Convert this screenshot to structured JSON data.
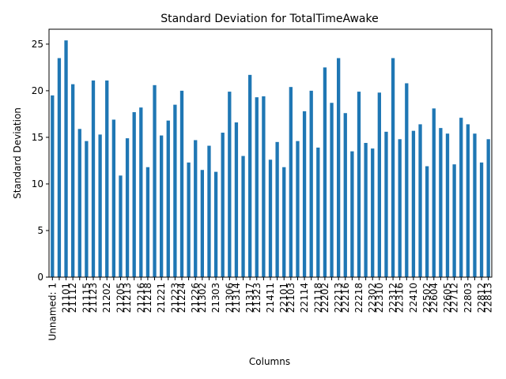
{
  "chart_data": {
    "type": "bar",
    "title": "Standard Deviation for TotalTimeAwake",
    "x_label": "Columns",
    "y_label": "Standard Deviation",
    "categories": [
      "Unnamed: 1",
      null,
      "21101",
      "21112",
      null,
      "21115",
      "21123",
      null,
      "21202",
      null,
      "21205",
      "21213",
      null,
      "21216",
      "21218",
      null,
      "21221",
      null,
      "21223",
      "21224",
      null,
      "21226",
      "21302",
      null,
      "21303",
      null,
      "21306",
      "21314",
      null,
      "21317",
      "21323",
      null,
      "21411",
      null,
      "22101",
      "22103",
      null,
      "22114",
      null,
      "22118",
      "22202",
      null,
      "22213",
      "22216",
      null,
      "22218",
      null,
      "22302",
      "22310",
      null,
      "22312",
      "22316",
      null,
      "22410",
      null,
      "22502",
      "22604",
      null,
      "22605",
      "22712",
      null,
      "22803",
      null,
      "22812",
      "22813"
    ],
    "values": [
      19.5,
      23.5,
      25.4,
      20.7,
      15.9,
      14.6,
      21.1,
      15.3,
      21.1,
      16.9,
      10.9,
      14.9,
      17.7,
      18.2,
      11.8,
      20.6,
      15.2,
      16.8,
      18.5,
      20.0,
      12.3,
      14.7,
      11.5,
      14.1,
      11.3,
      15.5,
      19.9,
      16.6,
      13.0,
      21.7,
      19.3,
      19.4,
      12.6,
      14.5,
      11.8,
      20.4,
      14.6,
      17.8,
      20.0,
      13.9,
      22.5,
      18.7,
      23.5,
      17.6,
      13.5,
      19.9,
      14.4,
      13.8,
      19.8,
      15.6,
      23.5,
      14.8,
      20.8,
      15.7,
      16.4,
      11.9,
      18.1,
      16.0,
      15.4,
      12.1,
      17.1,
      16.4,
      15.4,
      12.3,
      14.8
    ],
    "color": "#1f77b4",
    "ylim": [
      0,
      26.6
    ],
    "yticks": [
      0,
      5,
      10,
      15,
      20,
      25
    ],
    "grid": false
  }
}
